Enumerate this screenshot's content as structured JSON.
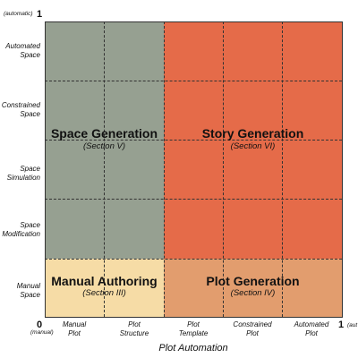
{
  "regions": {
    "space_generation": {
      "title": "Space Generation",
      "section": "(Section V)",
      "color": "#96a091"
    },
    "story_generation": {
      "title": "Story Generation",
      "section": "(Section VI)",
      "color": "#e56b49"
    },
    "manual_authoring": {
      "title": "Manual Authoring",
      "section": "(Section III)",
      "color": "#f6dca6"
    },
    "plot_generation": {
      "title": "Plot Generation",
      "section": "(Section IV)",
      "color": "#e29d6e"
    }
  },
  "y_axis": {
    "top_value": "1",
    "top_note": "(automatic)",
    "labels": [
      {
        "line1": "Automated",
        "line2": "Space"
      },
      {
        "line1": "Constrained",
        "line2": "Space"
      },
      {
        "line1": "Space",
        "line2": "Simulation"
      },
      {
        "line1": "Space",
        "line2": "Modification"
      },
      {
        "line1": "Manual",
        "line2": "Space"
      }
    ]
  },
  "x_axis": {
    "title": "Plot Automation",
    "origin_value": "0",
    "origin_note": "(manual)",
    "end_value": "1",
    "end_note": "(aut",
    "labels": [
      {
        "line1": "Manual",
        "line2": "Plot"
      },
      {
        "line1": "Plot",
        "line2": "Structure"
      },
      {
        "line1": "Plot",
        "line2": "Template"
      },
      {
        "line1": "Constrained",
        "line2": "Plot"
      },
      {
        "line1": "Automated",
        "line2": "Plot"
      }
    ]
  }
}
